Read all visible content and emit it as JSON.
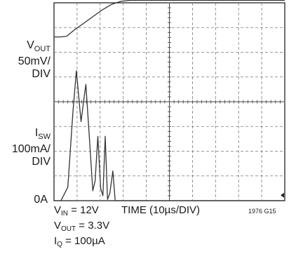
{
  "chart_data": {
    "type": "line",
    "title": "",
    "xlabel": "TIME (10µs/DIV)",
    "grid": true,
    "x_divisions": 10,
    "y_divisions": 8,
    "traces": [
      {
        "name": "VOUT",
        "label_main": "V",
        "label_sub": "OUT",
        "scale": "50mV/",
        "scale_unit": "DIV",
        "units": "div",
        "color": "#333333",
        "x": [
          0,
          0.3,
          0.55,
          0.9,
          1.3,
          1.7,
          2.1,
          2.5,
          2.9,
          3.3,
          3.7,
          4.0,
          10
        ],
        "y": [
          6.62,
          6.62,
          6.65,
          6.92,
          7.18,
          7.45,
          7.72,
          7.94,
          8.06,
          8.1,
          8.1,
          8.1,
          8.1
        ]
      },
      {
        "name": "ISW",
        "label_main": "I",
        "label_sub": "SW",
        "scale": "100mA/",
        "scale_unit": "DIV",
        "zero_label": "0A",
        "units": "div",
        "color": "#333333",
        "x": [
          0,
          0.3,
          0.6,
          0.82,
          0.97,
          1.17,
          1.38,
          1.55,
          1.68,
          1.78,
          1.9,
          2.02,
          2.12,
          2.22,
          2.32,
          2.42,
          2.55,
          2.65,
          2.82,
          10
        ],
        "y": [
          0,
          0,
          0.55,
          3.6,
          5.25,
          3.2,
          4.7,
          2.3,
          0.4,
          0.8,
          2.6,
          0.5,
          0.2,
          2.6,
          0.05,
          0.3,
          1.2,
          0.0,
          0.0,
          0
        ]
      }
    ]
  },
  "conditions": [
    {
      "main": "V",
      "sub": "IN",
      "rest": " = 12V"
    },
    {
      "main": "V",
      "sub": "OUT",
      "rest": " = 3.3V"
    },
    {
      "main": "I",
      "sub": "Q",
      "rest": " = 100µA"
    }
  ],
  "figure_code": "1976 G15"
}
